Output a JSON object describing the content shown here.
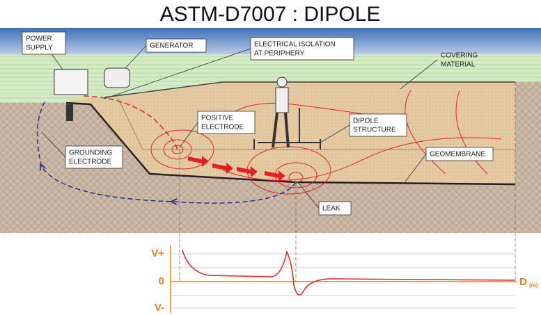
{
  "title": "ASTM-D7007 : DIPOLE",
  "labels": {
    "power_supply": [
      "POWER",
      "SUPPLY"
    ],
    "generator": [
      "GENERATOR"
    ],
    "electrical_isolation": [
      "ELECTRICAL ISOLATION",
      "AT PERIPHERY"
    ],
    "covering_material": [
      "COVERING",
      "MATERIAL"
    ],
    "positive_electrode": [
      "POSITIVE",
      "ELECTRODE"
    ],
    "dipole_structure": [
      "DIPOLE",
      "STRUCTURE"
    ],
    "grounding_electrode": [
      "GROUNDING",
      "ELECTRODE"
    ],
    "geomembrane": [
      "GEOMEMBRANE"
    ],
    "leak": [
      "LEAK"
    ]
  },
  "graph": {
    "y_labels": [
      "V+",
      "0",
      "V-"
    ],
    "x_label": "D",
    "x_unit": "(m)"
  }
}
